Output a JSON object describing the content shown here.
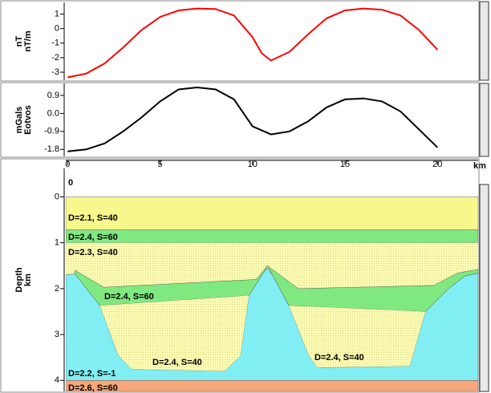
{
  "chart_data": [
    {
      "type": "line",
      "y_label": [
        "nT",
        "nT/m"
      ],
      "x": [
        0,
        1,
        2,
        3,
        4,
        5,
        6,
        7,
        8,
        9,
        10,
        10.5,
        11,
        12,
        13,
        14,
        15,
        16,
        17,
        18,
        19,
        20
      ],
      "series": [
        {
          "color": "#ff0000",
          "values": [
            -3.35,
            -3.1,
            -2.4,
            -1.3,
            -0.1,
            0.8,
            1.25,
            1.38,
            1.35,
            0.9,
            -0.6,
            -1.7,
            -2.2,
            -1.6,
            -0.4,
            0.7,
            1.25,
            1.38,
            1.3,
            0.9,
            -0.1,
            -1.45
          ]
        }
      ],
      "xlim": [
        -0.1,
        22.2
      ],
      "ylim": [
        -3.55,
        1.8
      ],
      "yticks": [
        1,
        0,
        -1,
        -2,
        -3
      ]
    },
    {
      "type": "line",
      "y_label": [
        "mGals",
        "Eotvos"
      ],
      "x": [
        0,
        1,
        2,
        3,
        4,
        5,
        6,
        7,
        8,
        9,
        10,
        11,
        12,
        13,
        14,
        15,
        16,
        17,
        18,
        19,
        20
      ],
      "series": [
        {
          "color": "#000000",
          "values": [
            -1.9,
            -1.8,
            -1.5,
            -0.9,
            -0.2,
            0.6,
            1.2,
            1.3,
            1.2,
            0.7,
            -0.65,
            -1.05,
            -0.9,
            -0.4,
            0.3,
            0.7,
            0.75,
            0.6,
            0.1,
            -0.8,
            -1.7
          ]
        }
      ],
      "xlim": [
        -0.1,
        22.2
      ],
      "ylim": [
        -2.15,
        1.5
      ],
      "yticks": [
        0.9,
        {
          "value": 0,
          "label": "0.0"
        },
        -0.9,
        -1.8
      ]
    },
    {
      "type": "section",
      "y_label": [
        "Depth",
        "km"
      ],
      "x_label": "km",
      "annotation": "0",
      "xlim": [
        -0.1,
        22.2
      ],
      "ylim": [
        4.24,
        -0.62
      ],
      "xticks": [
        0,
        5,
        10,
        15,
        20
      ],
      "yticks": [
        0,
        1,
        2,
        3,
        4
      ],
      "layers": [
        {
          "name": "D=2.1, S=40",
          "color": "#f7f78c",
          "x": [
            -0.1,
            22.2,
            22.2,
            -0.1
          ],
          "depth": [
            0,
            0,
            0.72,
            0.72
          ]
        },
        {
          "name": "D=2.4, S=60",
          "color": "#80e880",
          "x": [
            -0.1,
            22.2,
            22.2,
            -0.1
          ],
          "depth": [
            0.72,
            0.72,
            1.0,
            1.0
          ]
        },
        {
          "name": "D=2.3, S=40",
          "color": "dotted",
          "x": [
            -0.1,
            22.2,
            22.2,
            -0.1
          ],
          "depth": [
            1.0,
            1.0,
            4.0,
            4.0
          ]
        },
        {
          "name": "D=2.2, S=-1",
          "color": "#80eef2",
          "x": [
            -0.1,
            0.4,
            1.74,
            2.74,
            3.48,
            8.48,
            9.35,
            9.8,
            10.65,
            10.8,
            11.1,
            11.96,
            13.04,
            13.5,
            18.5,
            19.35,
            20.65,
            21.5,
            22.2,
            22.2,
            -0.1
          ],
          "depth": [
            1.7,
            1.68,
            2.37,
            3.46,
            3.76,
            3.8,
            3.46,
            2.15,
            1.62,
            1.55,
            1.72,
            2.37,
            3.46,
            3.72,
            3.69,
            2.5,
            1.98,
            1.72,
            1.66,
            4.0,
            4.0
          ]
        },
        {
          "name": "D=2.4, S=60",
          "color": "#80e880",
          "x": [
            0.4,
            1.96,
            10.2,
            10.8,
            10.65,
            9.8,
            1.74,
            0.4
          ],
          "depth": [
            1.6,
            1.97,
            1.8,
            1.5,
            1.62,
            2.15,
            2.37,
            1.68
          ]
        },
        {
          "color": "#80e880",
          "x": [
            10.8,
            12.48,
            19.8,
            21.1,
            22.2,
            22.2,
            21.5,
            20.65,
            19.35,
            11.96,
            11.1
          ],
          "depth": [
            1.5,
            2.0,
            1.93,
            1.66,
            1.58,
            1.66,
            1.72,
            1.98,
            2.5,
            2.37,
            1.72
          ]
        },
        {
          "name": "D=2.4, S=40",
          "color": "dotted",
          "x": [
            1.74,
            2.74,
            3.48,
            8.48,
            9.35,
            9.8
          ],
          "depth": [
            2.37,
            3.46,
            3.76,
            3.8,
            3.46,
            2.15
          ]
        },
        {
          "name": "D=2.4, S=40",
          "color": "dotted",
          "x": [
            11.96,
            13.04,
            13.5,
            18.5,
            19.35
          ],
          "depth": [
            2.37,
            3.46,
            3.72,
            3.69,
            2.5
          ]
        },
        {
          "name": "D=2.6, S=60",
          "color": "#f6a87c",
          "x": [
            -0.1,
            22.2,
            22.2,
            -0.1
          ],
          "depth": [
            4.0,
            4.0,
            4.24,
            4.24
          ]
        }
      ]
    }
  ]
}
